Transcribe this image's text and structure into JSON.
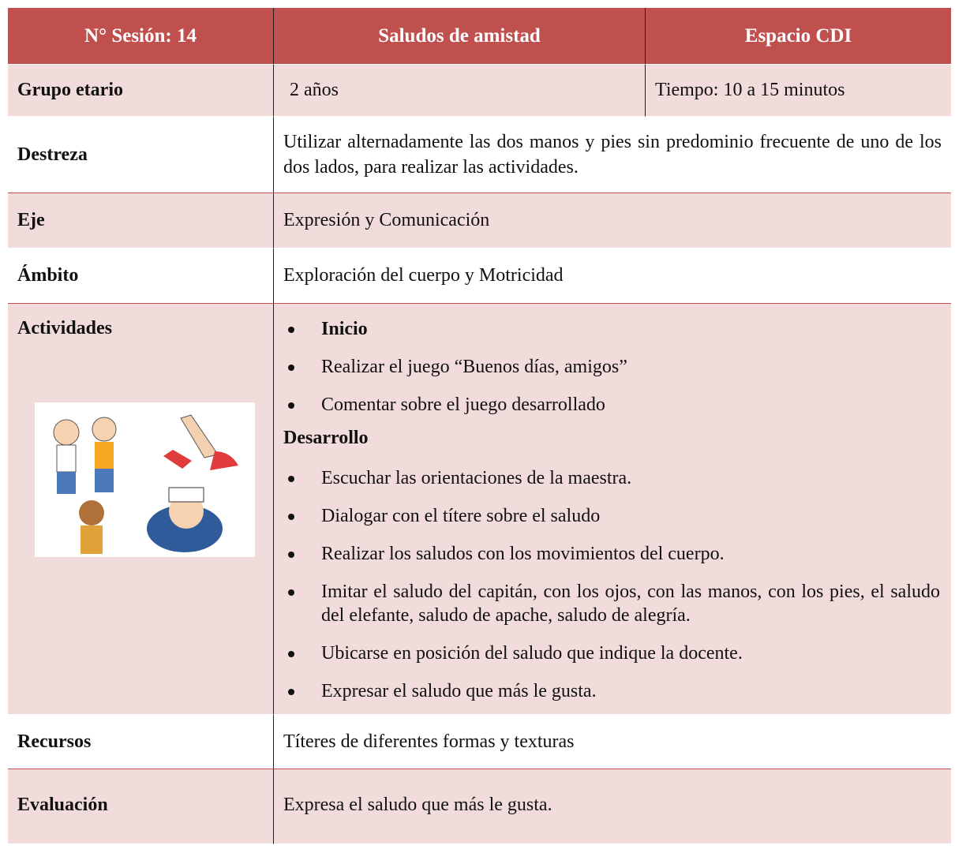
{
  "header": {
    "session": "N° Sesión: 14",
    "title": "Saludos de amistad",
    "space": "Espacio CDI"
  },
  "age_group": {
    "label": "Grupo etario",
    "value": "2 años",
    "time": "Tiempo: 10 a 15 minutos"
  },
  "skill": {
    "label": "Destreza",
    "value": "Utilizar alternadamente las dos manos y pies sin predominio frecuente de uno de los dos lados, para realizar las actividades."
  },
  "axis": {
    "label": "Eje",
    "value": "Expresión y Comunicación"
  },
  "scope": {
    "label": "Ámbito",
    "value": "Exploración del cuerpo y Motricidad"
  },
  "activities": {
    "label": "Actividades",
    "start_heading": "Inicio",
    "start_items": [
      "Realizar el juego “Buenos días, amigos”",
      "Comentar sobre el juego desarrollado"
    ],
    "development_heading": "Desarrollo",
    "development_items": [
      "Escuchar las orientaciones de la maestra.",
      "Dialogar con el títere sobre el saludo",
      "Realizar los saludos con los movimientos del cuerpo.",
      "Imitar el saludo del capitán, con los ojos, con las manos, con los pies, el saludo del elefante, saludo de apache, saludo de alegría.",
      "Ubicarse en posición del saludo que indique la docente.",
      "Expresar el saludo que más le gusta."
    ]
  },
  "resources": {
    "label": "Recursos",
    "value": "Títeres de diferentes formas y texturas"
  },
  "evaluation": {
    "label": "Evaluación",
    "value": "Expresa el saludo que más le gusta."
  }
}
